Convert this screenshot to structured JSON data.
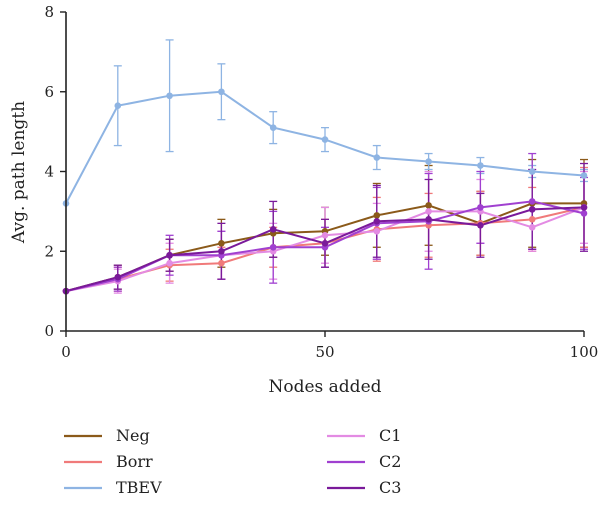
{
  "chart_data": {
    "type": "line",
    "title": "",
    "xlabel": "Nodes added",
    "ylabel": "Avg. path length",
    "xlim": [
      0,
      100
    ],
    "ylim": [
      0,
      8
    ],
    "xticks": [
      0,
      50,
      100
    ],
    "yticks": [
      0,
      2,
      4,
      6,
      8
    ],
    "grid": false,
    "legend_position": "bottom",
    "x": [
      0,
      10,
      20,
      30,
      40,
      50,
      60,
      70,
      80,
      90,
      100
    ],
    "series": [
      {
        "name": "Neg",
        "color": "#8B5A1A",
        "values": [
          1.0,
          1.35,
          1.9,
          2.2,
          2.45,
          2.5,
          2.9,
          3.15,
          2.7,
          3.2,
          3.2
        ],
        "err": [
          0.02,
          0.3,
          0.4,
          0.6,
          0.6,
          0.6,
          0.8,
          1.0,
          0.8,
          1.1,
          1.1
        ]
      },
      {
        "name": "Borr",
        "color": "#F07A7A",
        "values": [
          1.0,
          1.3,
          1.65,
          1.7,
          2.1,
          2.2,
          2.55,
          2.65,
          2.7,
          2.8,
          3.1
        ],
        "err": [
          0.02,
          0.3,
          0.4,
          0.4,
          0.5,
          0.6,
          0.8,
          0.8,
          0.8,
          0.8,
          1.0
        ]
      },
      {
        "name": "TBEV",
        "color": "#8EB4E3",
        "values": [
          3.2,
          5.65,
          5.9,
          6.0,
          5.1,
          4.8,
          4.35,
          4.25,
          4.15,
          4.0,
          3.9
        ],
        "err": [
          0.0,
          1.0,
          1.4,
          0.7,
          0.4,
          0.3,
          0.3,
          0.2,
          0.2,
          0.15,
          0.15
        ]
      },
      {
        "name": "C1",
        "color": "#E38BE3",
        "values": [
          1.0,
          1.25,
          1.7,
          1.9,
          2.0,
          2.4,
          2.5,
          3.0,
          3.0,
          2.6,
          3.1
        ],
        "err": [
          0.02,
          0.3,
          0.5,
          0.6,
          0.7,
          0.7,
          0.7,
          1.0,
          0.8,
          0.6,
          0.9
        ]
      },
      {
        "name": "C2",
        "color": "#A040D0",
        "values": [
          1.0,
          1.3,
          1.9,
          1.9,
          2.1,
          2.1,
          2.7,
          2.75,
          3.1,
          3.25,
          2.95
        ],
        "err": [
          0.02,
          0.3,
          0.5,
          0.6,
          0.9,
          0.5,
          0.9,
          1.2,
          0.9,
          1.2,
          0.9
        ]
      },
      {
        "name": "C3",
        "color": "#7A1A9A",
        "values": [
          1.0,
          1.35,
          1.9,
          2.0,
          2.55,
          2.2,
          2.75,
          2.8,
          2.65,
          3.05,
          3.1
        ],
        "err": [
          0.02,
          0.3,
          0.4,
          0.7,
          0.7,
          0.6,
          0.9,
          1.0,
          0.8,
          1.0,
          1.1
        ]
      }
    ]
  }
}
